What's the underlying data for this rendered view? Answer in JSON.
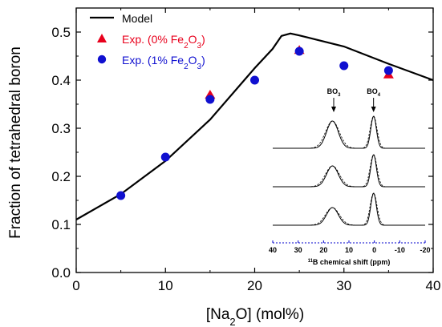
{
  "chart_data": {
    "type": "scatter",
    "xlabel": "[Na2O] (mol%)",
    "ylabel": "Fraction of tetrahedral boron",
    "xlim": [
      0,
      40
    ],
    "ylim": [
      0.0,
      0.55
    ],
    "xticks": [
      0,
      10,
      20,
      30,
      40
    ],
    "yticks": [
      0.0,
      0.1,
      0.2,
      0.3,
      0.4,
      0.5
    ],
    "xtick_labels": [
      "0",
      "10",
      "20",
      "30",
      "40"
    ],
    "ytick_labels": [
      "0.0",
      "0.1",
      "0.2",
      "0.3",
      "0.4",
      "0.5"
    ],
    "legend": {
      "placement": "top-left",
      "entries": [
        "Model",
        "Exp. (0% Fe2O3)",
        "Exp. (1% Fe2O3)"
      ]
    },
    "series": [
      {
        "name": "Model",
        "kind": "line",
        "color": "#000000",
        "x": [
          0,
          5,
          10,
          15,
          20,
          22,
          23,
          24,
          25,
          30,
          35,
          40
        ],
        "y": [
          0.11,
          0.163,
          0.232,
          0.318,
          0.425,
          0.465,
          0.492,
          0.497,
          0.493,
          0.47,
          0.434,
          0.4
        ]
      },
      {
        "name": "Exp. (0% Fe2O3)",
        "kind": "scatter",
        "marker": "triangle",
        "color": "#e8001c",
        "x": [
          15,
          25,
          35
        ],
        "y": [
          0.37,
          0.463,
          0.412
        ]
      },
      {
        "name": "Exp. (1% Fe2O3)",
        "kind": "scatter",
        "marker": "circle",
        "color": "#1010d0",
        "x": [
          5,
          10,
          15,
          20,
          25,
          30,
          35
        ],
        "y": [
          0.16,
          0.24,
          0.36,
          0.4,
          0.46,
          0.43,
          0.42
        ]
      }
    ],
    "inset": {
      "type": "nmr-spectra",
      "xlabel": "11B chemical shift (ppm)",
      "xlim": [
        40,
        -20
      ],
      "xticks": [
        40,
        30,
        20,
        10,
        0,
        -10,
        -20
      ],
      "xtick_labels": [
        "40",
        "30",
        "20",
        "10",
        "0",
        "-10",
        "-20"
      ],
      "annotations": [
        {
          "text": "BO3",
          "ppm": 16
        },
        {
          "text": "BO4",
          "ppm": 0
        }
      ],
      "spectra": [
        {
          "bo3_height": 0.85,
          "bo4_height": 1.0
        },
        {
          "bo3_height": 0.65,
          "bo4_height": 1.0
        },
        {
          "bo3_height": 0.55,
          "bo4_height": 1.0
        }
      ]
    }
  }
}
